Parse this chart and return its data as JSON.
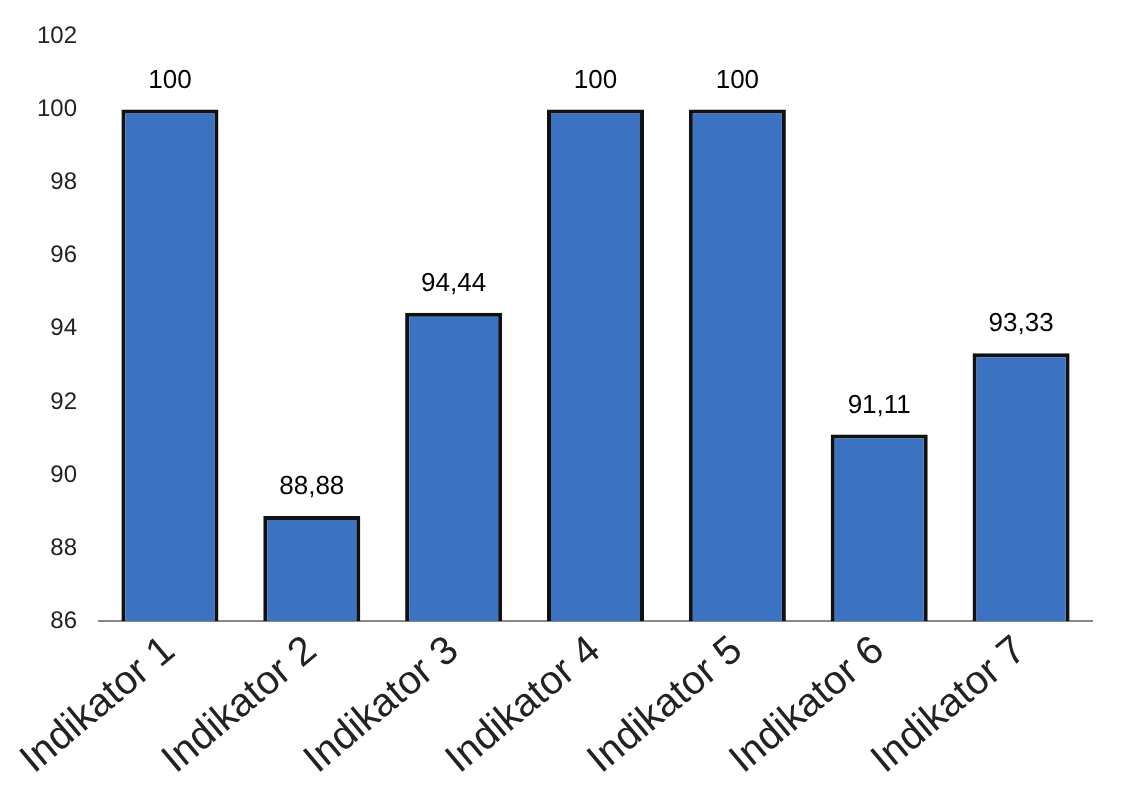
{
  "chart_data": {
    "type": "bar",
    "categories": [
      "Indikator 1",
      "Indikator 2",
      "Indikator 3",
      "Indikator 4",
      "Indikator 5",
      "Indikator 6",
      "Indikator 7"
    ],
    "values": [
      100,
      88.88,
      94.44,
      100,
      100,
      91.11,
      93.33
    ],
    "value_labels": [
      "100",
      "88,88",
      "94,44",
      "100",
      "100",
      "91,11",
      "93,33"
    ],
    "color": "#3b73c2",
    "ylim": [
      86,
      102
    ],
    "yticks": [
      86,
      88,
      90,
      92,
      94,
      96,
      98,
      100,
      102
    ],
    "grid": false,
    "legend": false
  }
}
